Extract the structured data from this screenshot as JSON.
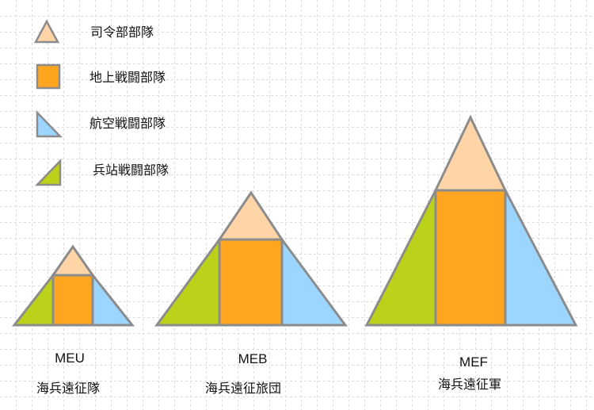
{
  "legend": [
    {
      "label": "司令部部隊",
      "icon": "peach-triangle-icon"
    },
    {
      "label": "地上戦闘部隊",
      "icon": "orange-square-icon"
    },
    {
      "label": "航空戦闘部隊",
      "icon": "blue-right-triangle-icon"
    },
    {
      "label": "兵站戦闘部隊",
      "icon": "green-right-triangle-icon"
    }
  ],
  "units": [
    {
      "abbr": "MEU",
      "name": "海兵遠征隊"
    },
    {
      "abbr": "MEB",
      "name": "海兵遠征旅団"
    },
    {
      "abbr": "MEF",
      "name": "海兵遠征軍"
    }
  ],
  "colors": {
    "command": "#FFD5A8",
    "ground": "#FFA51F",
    "aviation": "#9CD6FF",
    "logistics": "#BCD21A"
  }
}
